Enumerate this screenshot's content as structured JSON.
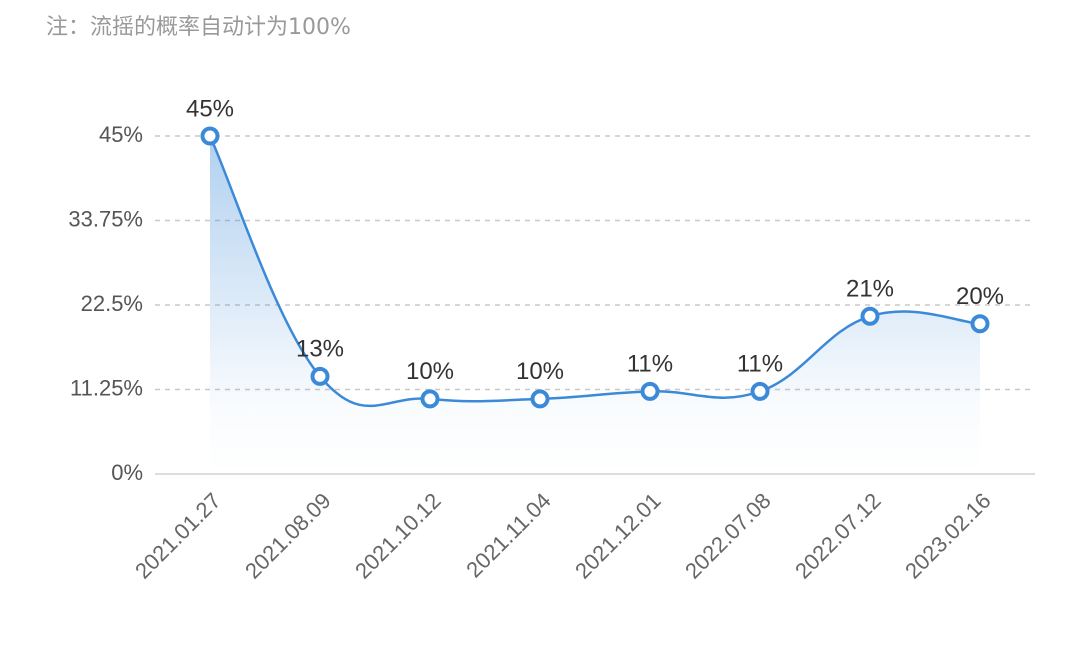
{
  "note": "注：流摇的概率自动计为100%",
  "chart_data": {
    "type": "line",
    "categories": [
      "2021.01.27",
      "2021.08.09",
      "2021.10.12",
      "2021.11.04",
      "2021.12.01",
      "2022.07.08",
      "2022.07.12",
      "2023.02.16"
    ],
    "values": [
      45,
      13,
      10,
      10,
      11,
      11,
      21,
      20
    ],
    "value_labels": [
      "45%",
      "13%",
      "10%",
      "10%",
      "11%",
      "11%",
      "21%",
      "20%"
    ],
    "color": "#3b8ad8",
    "ylim": [
      0,
      45
    ],
    "yticks": [
      {
        "value": 0,
        "label": "0%"
      },
      {
        "value": 11.25,
        "label": "11.25%"
      },
      {
        "value": 22.5,
        "label": "22.5%"
      },
      {
        "value": 33.75,
        "label": "33.75%"
      },
      {
        "value": 45,
        "label": "45%"
      }
    ],
    "grid": true
  }
}
